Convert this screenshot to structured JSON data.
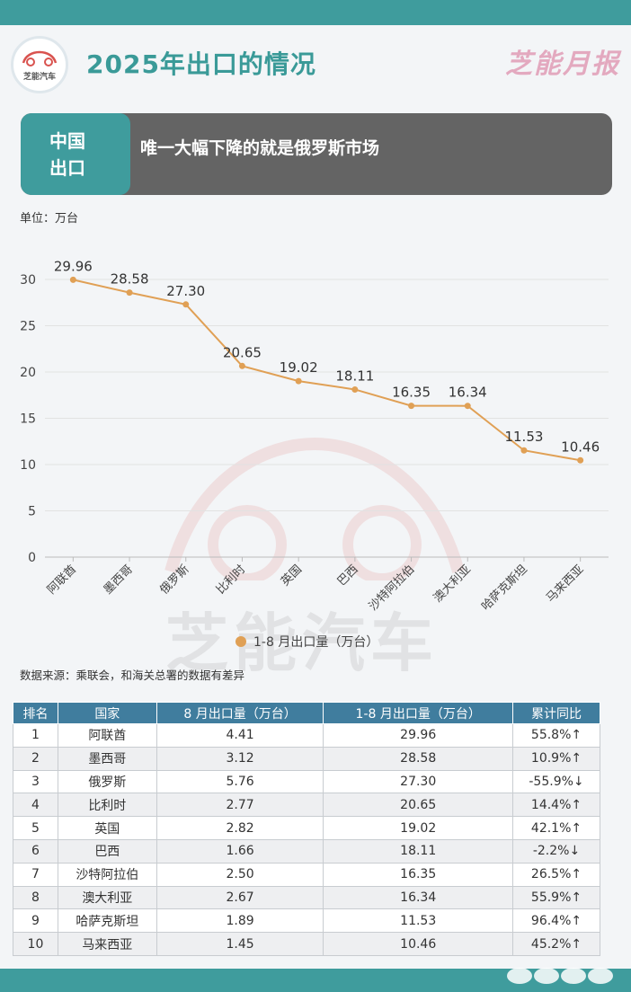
{
  "header": {
    "logo_text": "芝能汽车",
    "title": "2025年出口的情况",
    "brand": "芝能月报"
  },
  "banner": {
    "tag_line1": "中国",
    "tag_line2": "出口",
    "text": "唯一大幅下降的就是俄罗斯市场"
  },
  "unit_label": "单位：万台",
  "watermark_text": "芝能汽车",
  "colors": {
    "teal": "#3f9c9d",
    "line": "#e0a055",
    "table_header": "#407d9e",
    "banner_bg": "#646464"
  },
  "chart_data": {
    "type": "line",
    "categories": [
      "阿联酋",
      "墨西哥",
      "俄罗斯",
      "比利时",
      "英国",
      "巴西",
      "沙特阿拉伯",
      "澳大利亚",
      "哈萨克斯坦",
      "马来西亚"
    ],
    "series": [
      {
        "name": "1-8 月出口量（万台）",
        "values": [
          29.96,
          28.58,
          27.3,
          20.65,
          19.02,
          18.11,
          16.35,
          16.34,
          11.53,
          10.46
        ]
      }
    ],
    "data_labels": [
      "29.96",
      "28.58",
      "27.30",
      "20.65",
      "19.02",
      "18.11",
      "16.35",
      "16.34",
      "11.53",
      "10.46"
    ],
    "ylim": [
      0,
      30
    ],
    "yticks": [
      0,
      5,
      10,
      15,
      20,
      25,
      30
    ],
    "grid": true,
    "legend_position": "bottom"
  },
  "source_note": "数据来源：乘联会，和海关总署的数据有差异",
  "table": {
    "headers": [
      "排名",
      "国家",
      "8 月出口量（万台）",
      "1-8 月出口量（万台）",
      "累计同比"
    ],
    "rows": [
      [
        "1",
        "阿联酋",
        "4.41",
        "29.96",
        "55.8%↑"
      ],
      [
        "2",
        "墨西哥",
        "3.12",
        "28.58",
        "10.9%↑"
      ],
      [
        "3",
        "俄罗斯",
        "5.76",
        "27.30",
        "-55.9%↓"
      ],
      [
        "4",
        "比利时",
        "2.77",
        "20.65",
        "14.4%↑"
      ],
      [
        "5",
        "英国",
        "2.82",
        "19.02",
        "42.1%↑"
      ],
      [
        "6",
        "巴西",
        "1.66",
        "18.11",
        "-2.2%↓"
      ],
      [
        "7",
        "沙特阿拉伯",
        "2.50",
        "16.35",
        "26.5%↑"
      ],
      [
        "8",
        "澳大利亚",
        "2.67",
        "16.34",
        "55.9%↑"
      ],
      [
        "9",
        "哈萨克斯坦",
        "1.89",
        "11.53",
        "96.4%↑"
      ],
      [
        "10",
        "马来西亚",
        "1.45",
        "10.46",
        "45.2%↑"
      ]
    ]
  }
}
